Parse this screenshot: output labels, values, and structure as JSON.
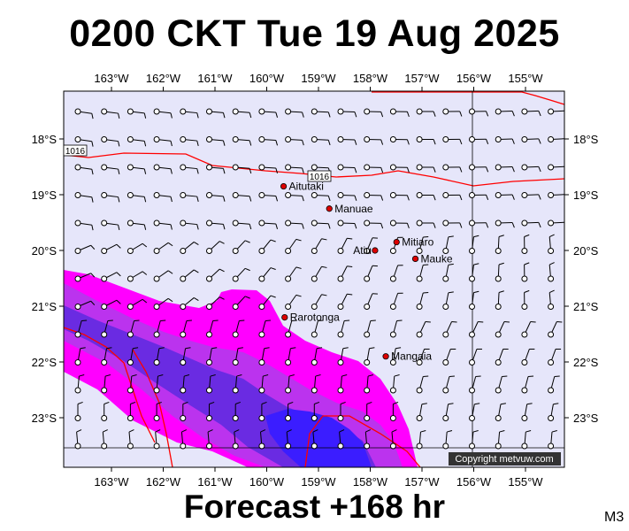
{
  "title": "0200 CKT Tue 19 Aug 2025",
  "subtitle": "Forecast +168 hr",
  "model_code": "M3",
  "copyright": "Copyright metvuw.com",
  "colors": {
    "ocean": "#e6e6fa",
    "rain_light": "#ff00ff",
    "rain_medium": "#bb33ee",
    "rain_heavy": "#6a2be2",
    "rain_very_heavy": "#3b1dff",
    "isobar": "#ff0000",
    "town": "#dd0000"
  },
  "axes": {
    "lon_ticks": [
      "163°W",
      "162°W",
      "161°W",
      "160°W",
      "159°W",
      "158°W",
      "157°W",
      "156°W",
      "155°W"
    ],
    "lat_ticks": [
      "18°S",
      "19°S",
      "20°S",
      "21°S",
      "22°S",
      "23°S"
    ]
  },
  "isobar_labels": [
    "1016",
    "1016"
  ],
  "places": [
    {
      "name": "Aitutaki",
      "lon": -159.8,
      "lat": -18.85
    },
    {
      "name": "Manuae",
      "lon": -158.95,
      "lat": -19.25
    },
    {
      "name": "Mitiaro",
      "lon": -157.7,
      "lat": -19.85
    },
    {
      "name": "Atiu",
      "lon": -158.1,
      "lat": -20.0
    },
    {
      "name": "Mauke",
      "lon": -157.35,
      "lat": -20.15
    },
    {
      "name": "Rarotonga",
      "lon": -159.78,
      "lat": -21.2
    },
    {
      "name": "Mangaia",
      "lon": -157.9,
      "lat": -21.9
    }
  ]
}
